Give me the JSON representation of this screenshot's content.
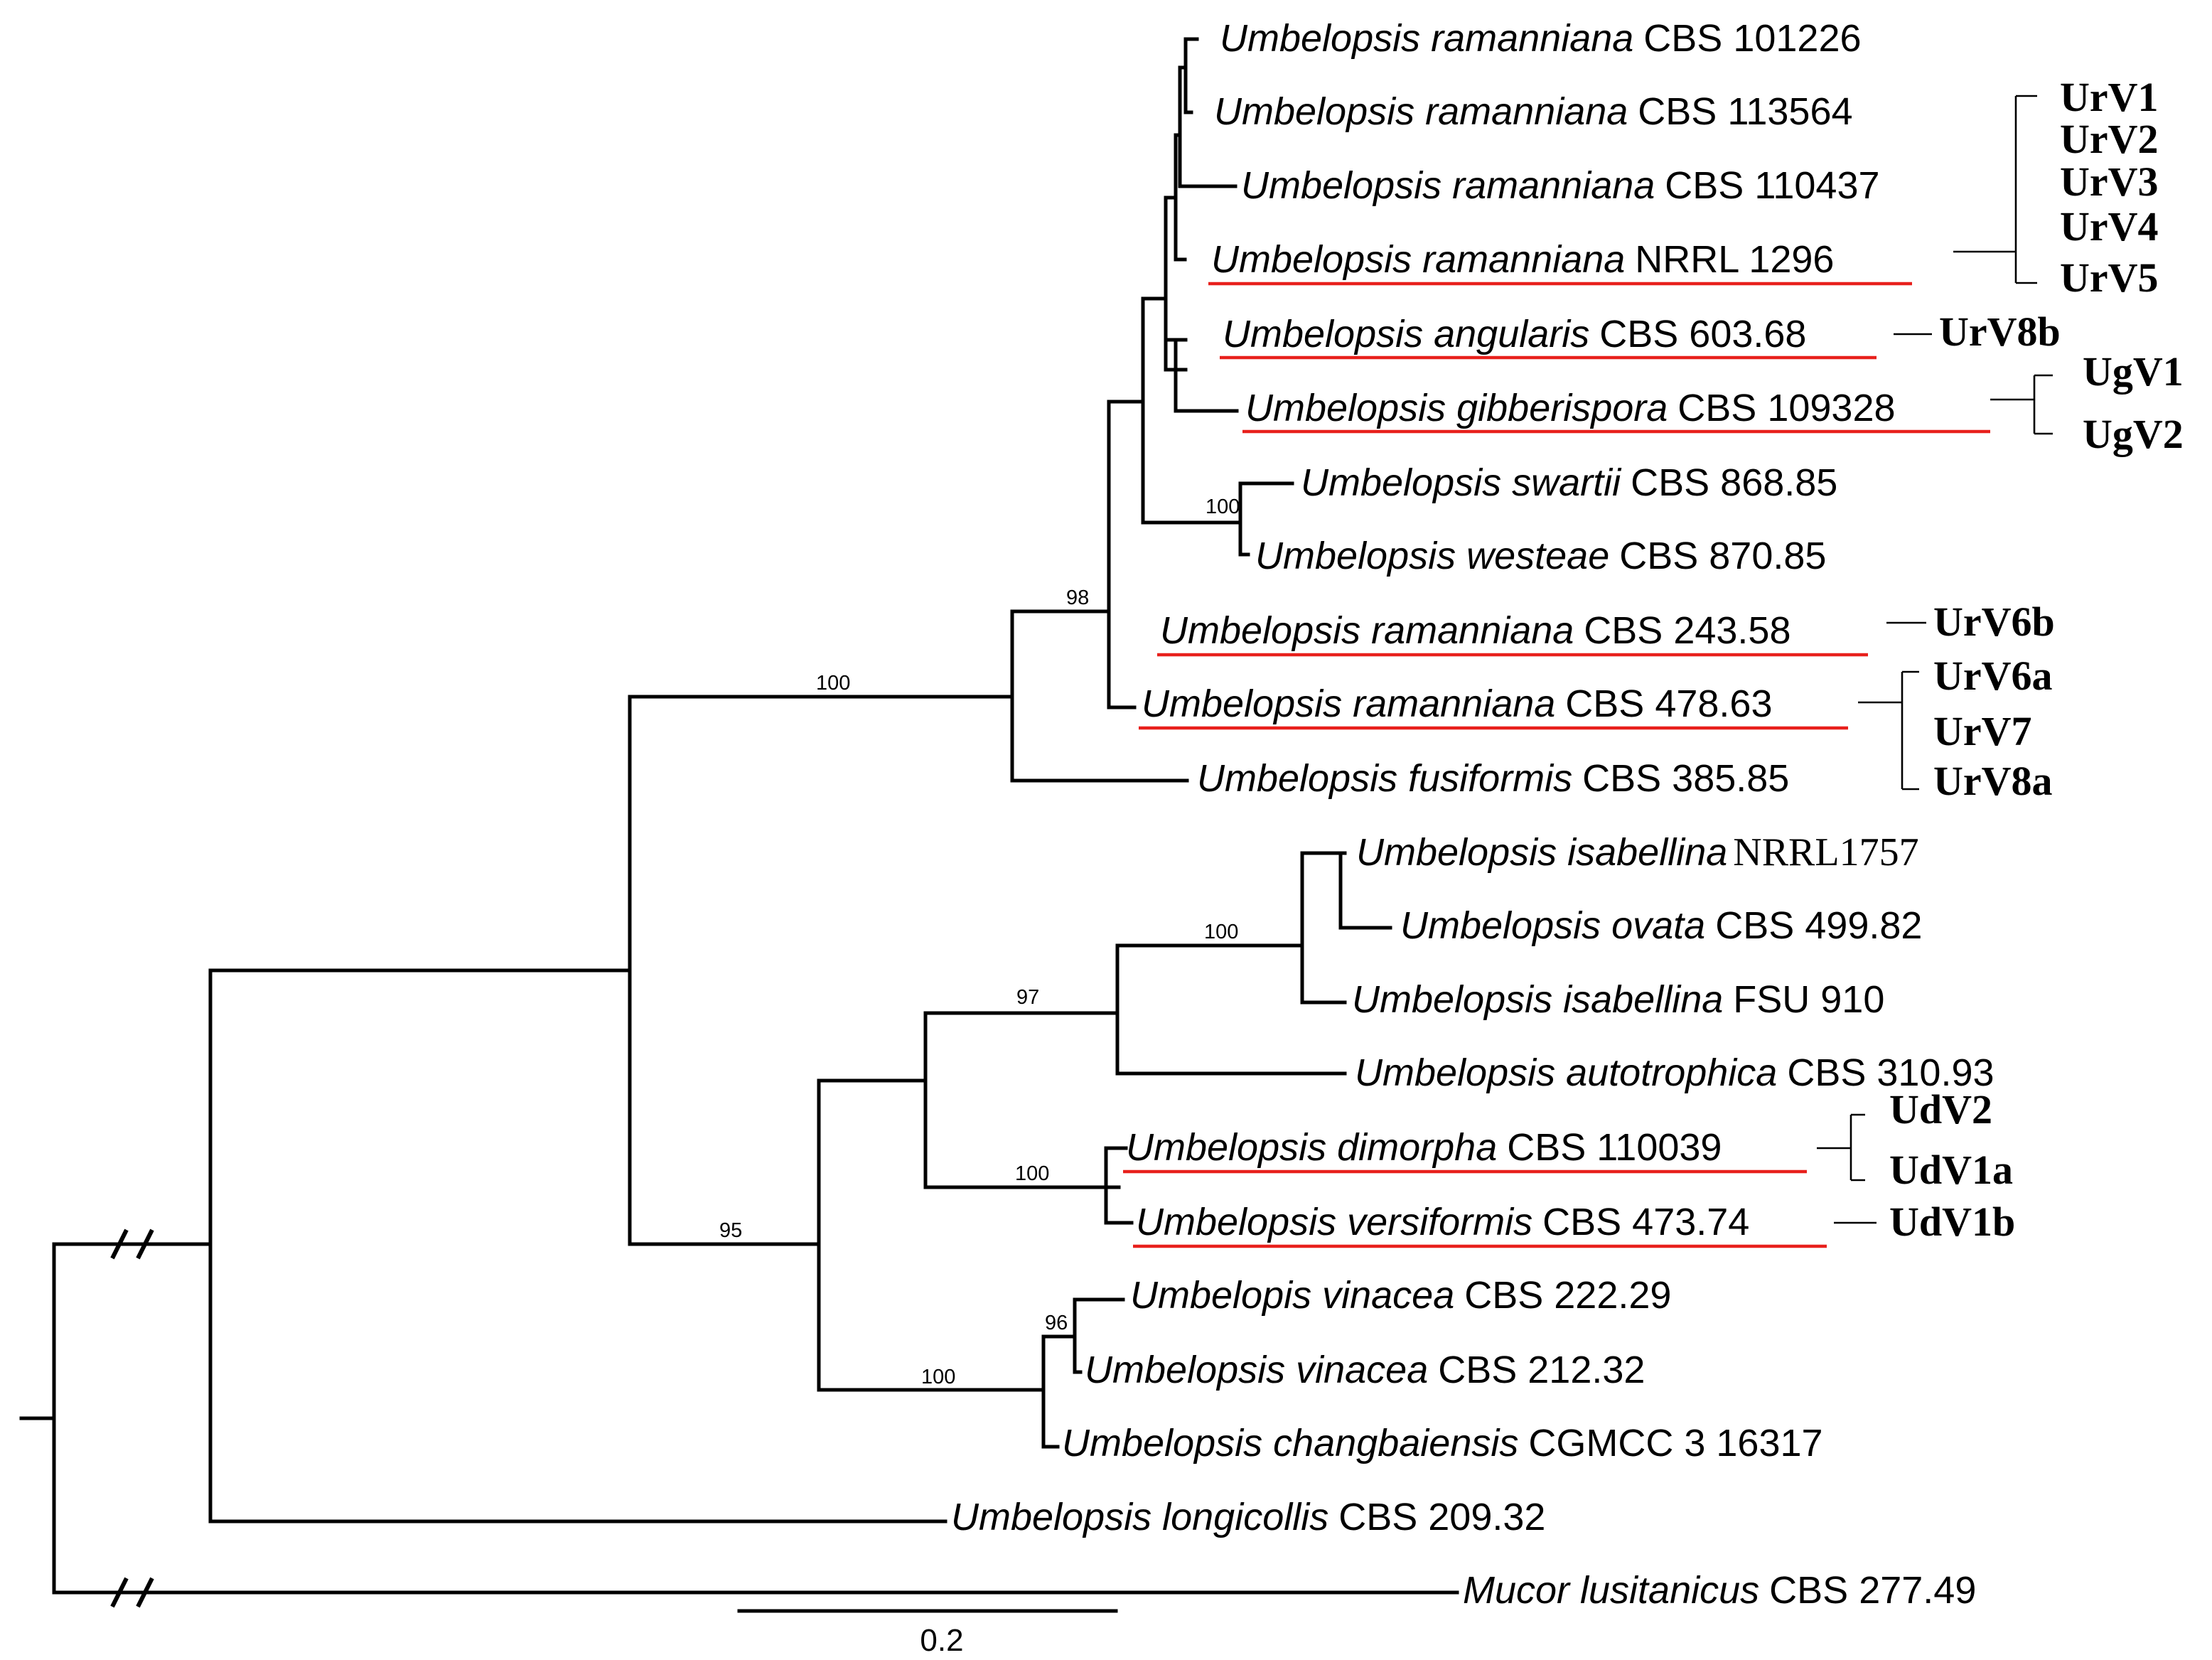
{
  "taxa": [
    {
      "id": "t1",
      "genus": "Umbelopsis ramanniana",
      "strain": "CBS 101226"
    },
    {
      "id": "t2",
      "genus": "Umbelopsis ramanniana",
      "strain": "CBS 113564"
    },
    {
      "id": "t3",
      "genus": "Umbelopsis ramanniana",
      "strain": "CBS 110437"
    },
    {
      "id": "t4",
      "genus": "Umbelopsis ramanniana",
      "strain": "NRRL 1296"
    },
    {
      "id": "t5",
      "genus": "Umbelopsis angularis",
      "strain": "CBS 603.68"
    },
    {
      "id": "t6",
      "genus": "Umbelopsis gibberispora",
      "strain": "CBS 109328"
    },
    {
      "id": "t7",
      "genus": "Umbelopsis swartii",
      "strain": "CBS 868.85"
    },
    {
      "id": "t8",
      "genus": "Umbelopsis westeae",
      "strain": "CBS 870.85"
    },
    {
      "id": "t9",
      "genus": "Umbelopsis ramanniana",
      "strain": "CBS 243.58"
    },
    {
      "id": "t10",
      "genus": "Umbelopsis ramanniana",
      "strain": "CBS 478.63"
    },
    {
      "id": "t11",
      "genus": "Umbelopsis fusiformis",
      "strain": "CBS 385.85"
    },
    {
      "id": "t12",
      "genus": "Umbelopsis isabellina",
      "strain": "NRRL1757"
    },
    {
      "id": "t13",
      "genus": "Umbelopsis ovata",
      "strain": "CBS 499.82"
    },
    {
      "id": "t14",
      "genus": "Umbelopsis isabellina",
      "strain": "FSU 910"
    },
    {
      "id": "t15",
      "genus": "Umbelopsis autotrophica",
      "strain": "CBS 310.93"
    },
    {
      "id": "t16",
      "genus": "Umbelopsis dimorpha",
      "strain": "CBS 110039"
    },
    {
      "id": "t17",
      "genus": "Umbelopsis versiformis",
      "strain": "CBS 473.74"
    },
    {
      "id": "t18",
      "genus": "Umbelopis vinacea",
      "strain": "CBS 222.29"
    },
    {
      "id": "t19",
      "genus": "Umbelopsis vinacea",
      "strain": "CBS 212.32"
    },
    {
      "id": "t20",
      "genus": "Umbelopsis changbaiensis",
      "strain": "CGMCC 3 16317"
    },
    {
      "id": "t21",
      "genus": "Umbelopsis longicollis",
      "strain": "CBS 209.32"
    },
    {
      "id": "t22",
      "genus": "Mucor lusitanicus",
      "strain": "CBS 277.49"
    }
  ],
  "viruses": [
    "UrV1",
    "UrV2",
    "UrV3",
    "UrV4",
    "UrV5",
    "UrV8b",
    "UgV1",
    "UgV2",
    "UrV6b",
    "UrV6a",
    "UrV7",
    "UrV8a",
    "UdV2",
    "UdV1a",
    "UdV1b"
  ],
  "support": [
    "100",
    "98",
    "100",
    "100",
    "97",
    "100",
    "95",
    "96",
    "100"
  ],
  "scale_label": "0.2",
  "colors": {
    "branch": "#000000",
    "virus_host_underline": "#e8201c"
  }
}
